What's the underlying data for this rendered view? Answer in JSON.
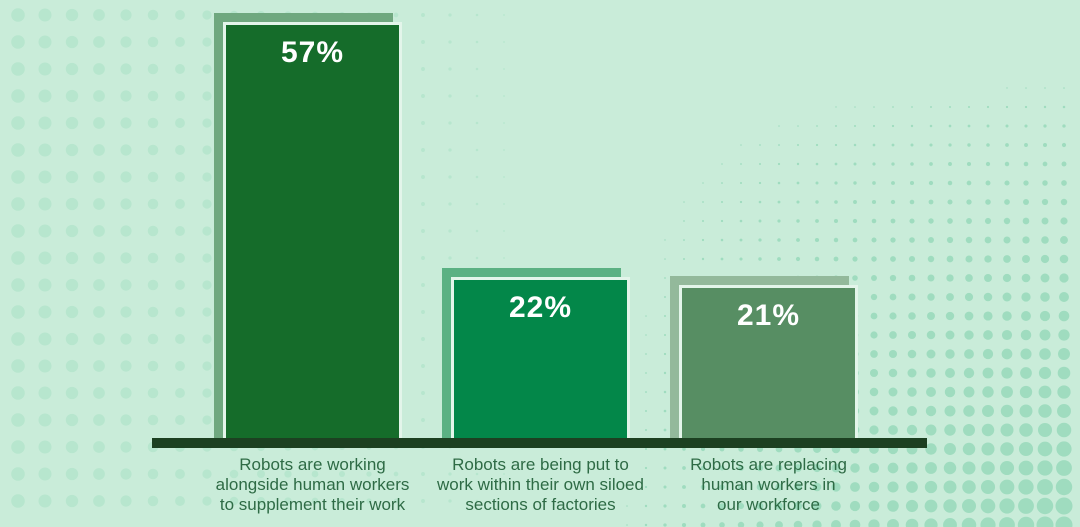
{
  "background": {
    "color": "#c9ecd9",
    "left_dot_color": "#b7e6ce",
    "right_dot_color": "#9fdcbf"
  },
  "axis": {
    "color": "#1c4021"
  },
  "text_colors": {
    "caption": "#2e6b45",
    "value_label": "#ffffff"
  },
  "chart_data": {
    "type": "bar",
    "title": "",
    "xlabel": "",
    "ylabel": "",
    "ylim": [
      0,
      57
    ],
    "grid": false,
    "legend": false,
    "categories": [
      "Robots are working alongside human workers to supplement their work",
      "Robots are being put to work within their own siloed sections of factories",
      "Robots are replacing human workers in our workforce"
    ],
    "values": [
      57,
      22,
      21
    ],
    "bars": [
      {
        "value": 57,
        "value_label": "57%",
        "caption": "Robots are working\nalongside human workers\nto supplement their work",
        "fill_color": "#156c2a",
        "backdrop_color": "#6fa87f",
        "border_color": "#e3f5ea"
      },
      {
        "value": 22,
        "value_label": "22%",
        "caption": "Robots are being put to\nwork within their own siloed\nsections of factories",
        "fill_color": "#038749",
        "backdrop_color": "#5bb183",
        "border_color": "#e3f5ea"
      },
      {
        "value": 21,
        "value_label": "21%",
        "caption": "Robots are replacing\nhuman workers in\nour workforce",
        "fill_color": "#578e63",
        "backdrop_color": "#93b99b",
        "border_color": "#e3f5ea"
      }
    ]
  }
}
